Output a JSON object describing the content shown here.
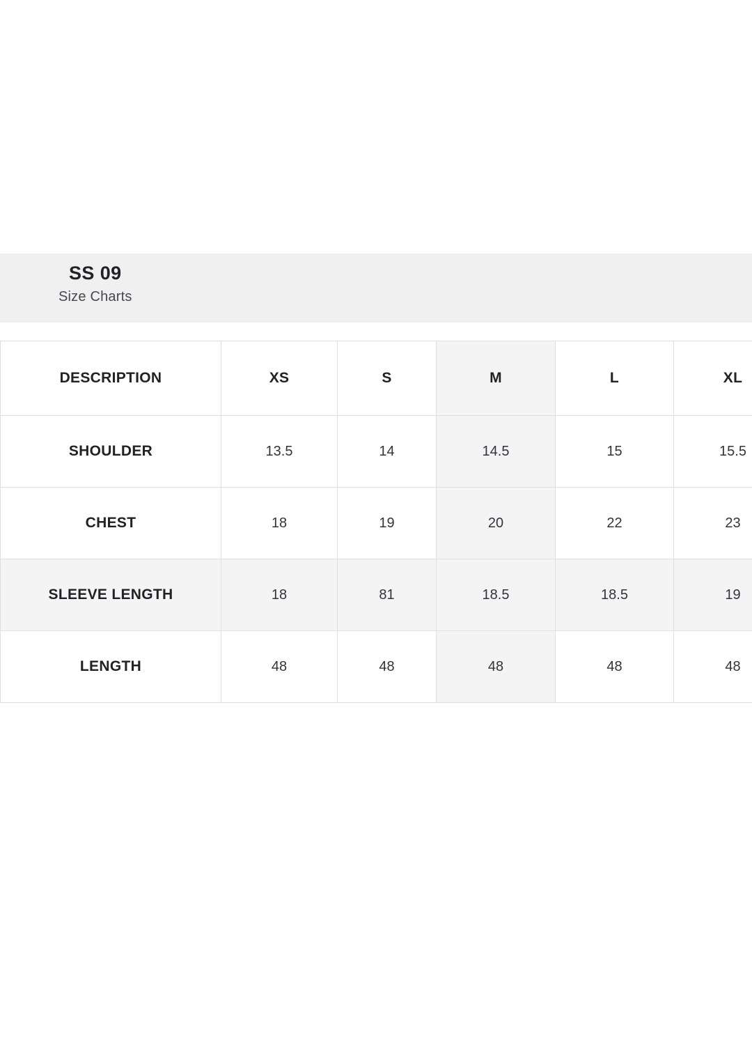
{
  "header": {
    "title": "SS 09",
    "subtitle": "Size Charts"
  },
  "size_chart": {
    "columns": [
      "DESCRIPTION",
      "XS",
      "S",
      "M",
      "L",
      "XL"
    ],
    "rows": [
      {
        "label": "SHOULDER",
        "values": [
          "13.5",
          "14",
          "14.5",
          "15",
          "15.5"
        ]
      },
      {
        "label": "CHEST",
        "values": [
          "18",
          "19",
          "20",
          "22",
          "23"
        ]
      },
      {
        "label": "SLEEVE LENGTH",
        "values": [
          "18",
          "81",
          "18.5",
          "18.5",
          "19"
        ]
      },
      {
        "label": "LENGTH",
        "values": [
          "48",
          "48",
          "48",
          "48",
          "48"
        ]
      }
    ],
    "highlight_column": "M",
    "highlight_row": "SLEEVE LENGTH"
  },
  "colors": {
    "band_background": "#f0f0f1",
    "highlight_background": "#f4f4f5",
    "border": "#dfdfdf",
    "heading_text": "#212225",
    "value_text": "#323437",
    "subtitle_text": "#47484a"
  }
}
